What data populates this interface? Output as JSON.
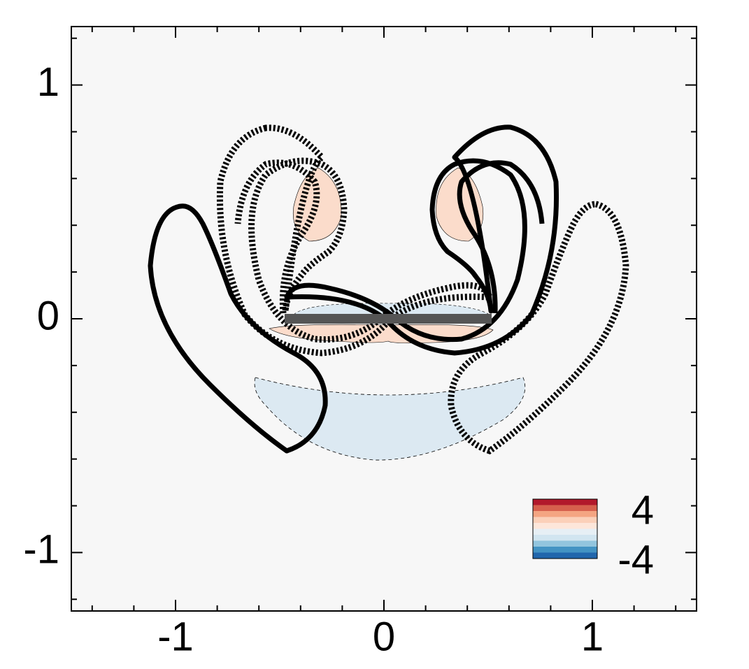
{
  "chart_data": {
    "type": "contour",
    "xlim": [
      -1.5,
      1.5
    ],
    "xticks": [
      -1,
      0,
      1
    ],
    "xminorticks": [
      -1.4,
      -1.2,
      -0.8,
      -0.6,
      -0.4,
      -0.2,
      0.2,
      0.4,
      0.6,
      0.8,
      1.2,
      1.4
    ],
    "ylim": [
      -1.25,
      1.25
    ],
    "yticks": [
      -1,
      0,
      1
    ],
    "yminorticks": [
      -1.2,
      -0.8,
      -0.6,
      -0.4,
      -0.2,
      0.2,
      0.4,
      0.6,
      0.8,
      1.2
    ],
    "background": "#f7f7f7",
    "colorbar": {
      "clim": [
        -4,
        4
      ],
      "ticks": [
        4,
        -4
      ],
      "colors": [
        "#b2182b",
        "#d6604d",
        "#f4a582",
        "#fbd0b9",
        "#fde6da",
        "#e6eff5",
        "#d1e5f0",
        "#92c5de",
        "#4393c3",
        "#2166ac"
      ]
    }
  }
}
